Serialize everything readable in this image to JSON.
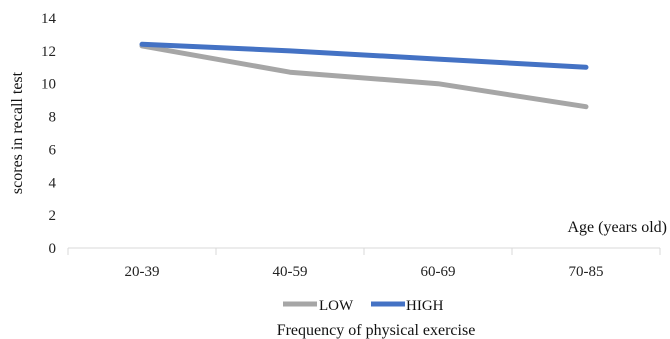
{
  "chart_data": {
    "type": "line",
    "categories": [
      "20-39",
      "40-59",
      "60-69",
      "70-85"
    ],
    "series": [
      {
        "name": "LOW",
        "values": [
          12.3,
          10.7,
          10.0,
          8.6
        ],
        "color": "#a6a6a6"
      },
      {
        "name": "HIGH",
        "values": [
          12.4,
          12.0,
          11.5,
          11.0
        ],
        "color": "#4472c4"
      }
    ],
    "xlabel": "Age (years old)",
    "ylabel": "scores in recall test",
    "ylim": [
      0,
      14
    ],
    "yticks": [
      "0",
      "2",
      "4",
      "6",
      "8",
      "10",
      "12",
      "14"
    ],
    "legend_title": "Frequency of physical exercise",
    "legend_position": "bottom",
    "grid": false
  }
}
